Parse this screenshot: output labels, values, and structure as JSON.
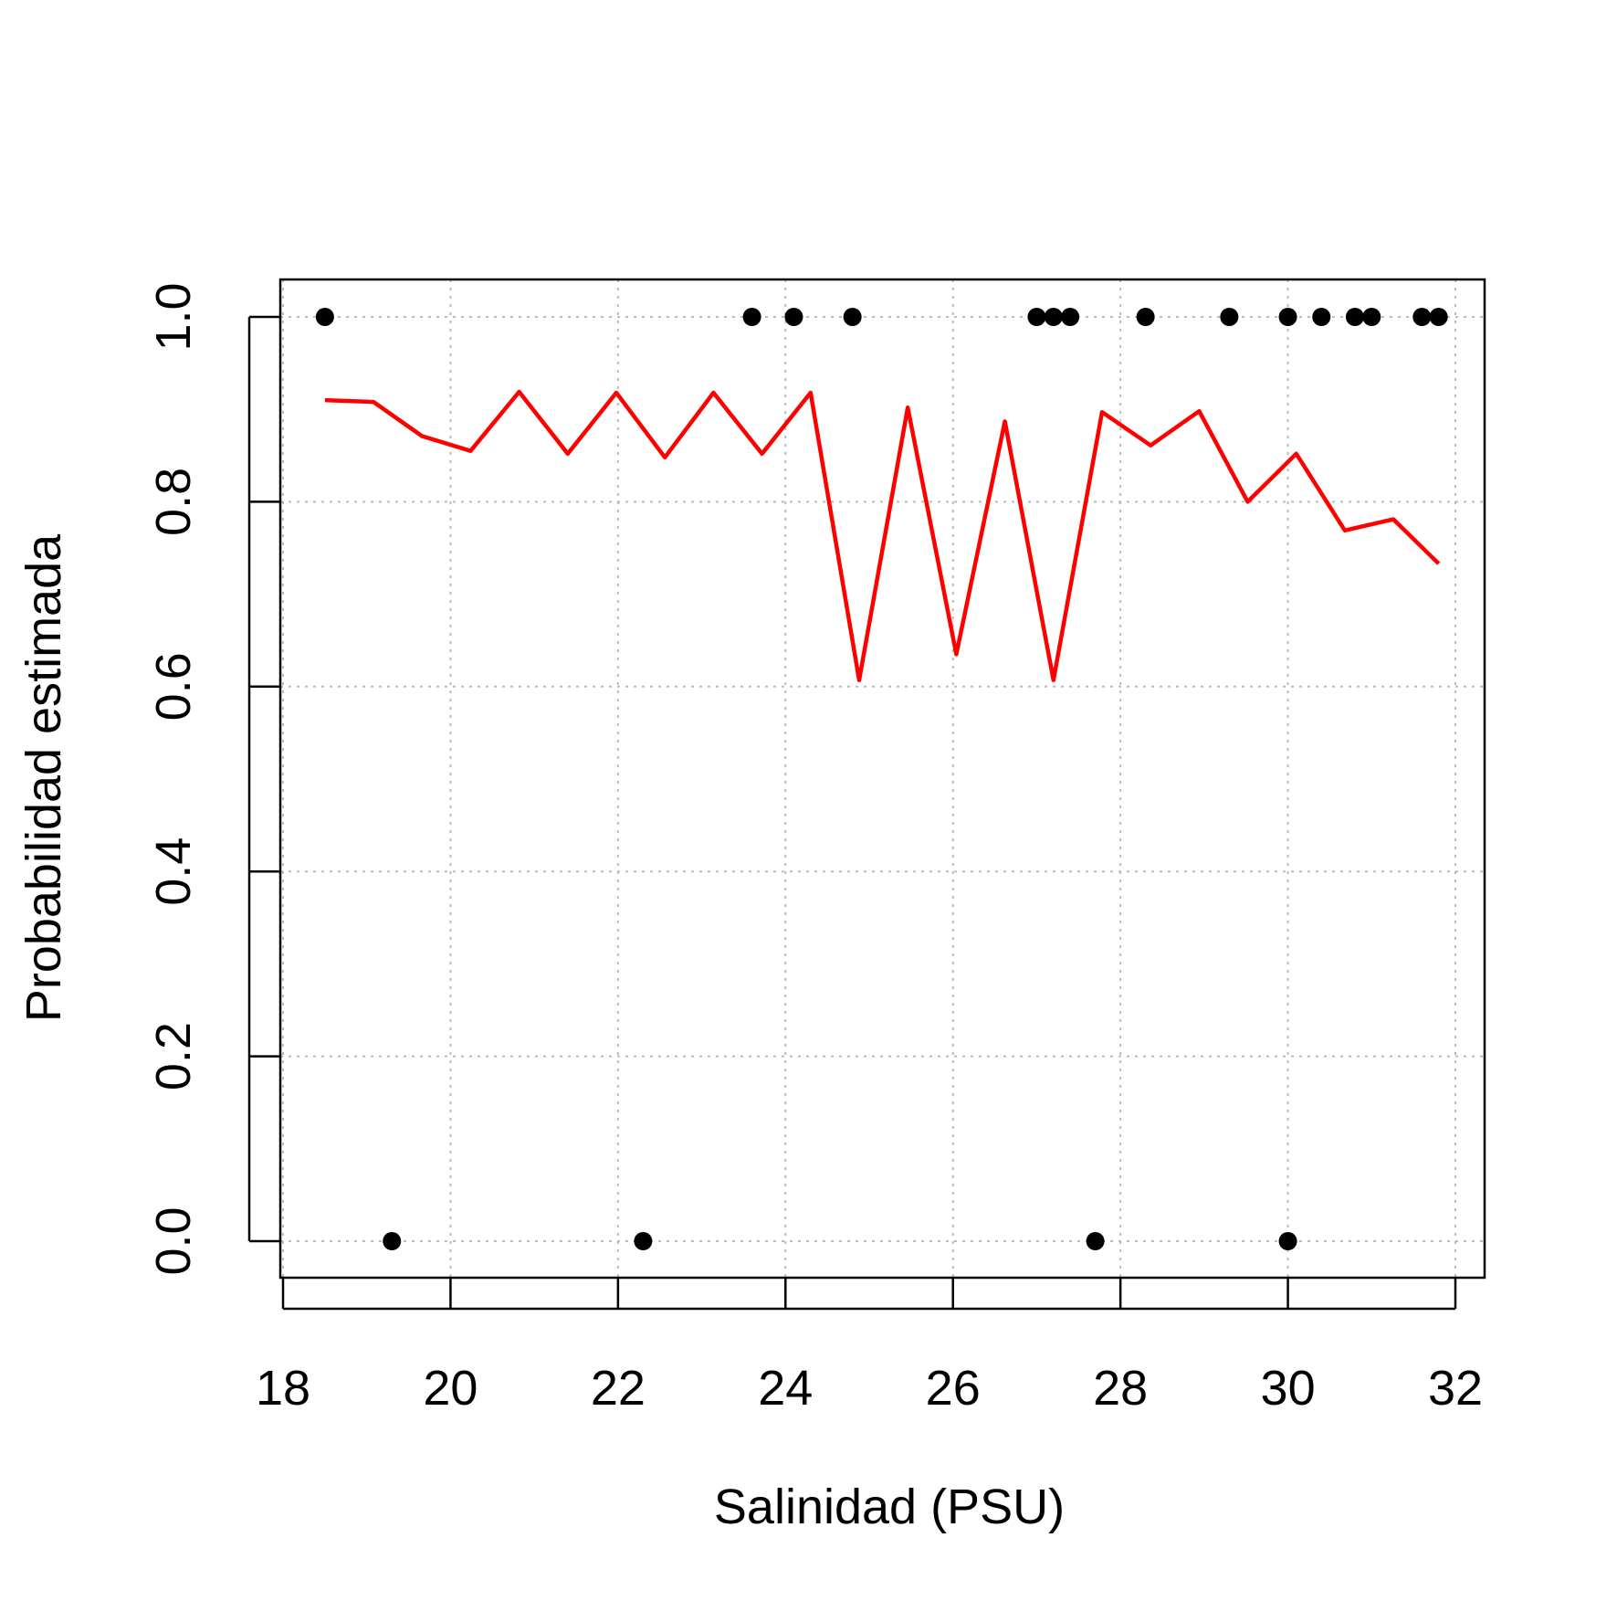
{
  "chart_data": {
    "type": "scatter",
    "title": "",
    "xlabel": "Salinidad (PSU)",
    "ylabel": "Probabilidad estimada",
    "xlim": [
      18,
      32
    ],
    "ylim": [
      0,
      1
    ],
    "xticks": [
      "18",
      "20",
      "22",
      "24",
      "26",
      "28",
      "30",
      "32"
    ],
    "yticks": [
      "0.0",
      "0.2",
      "0.4",
      "0.6",
      "0.8",
      "1.0"
    ],
    "xtick_values": [
      18,
      20,
      22,
      24,
      26,
      28,
      30,
      32
    ],
    "ytick_values": [
      0,
      0.2,
      0.4,
      0.6,
      0.8,
      1.0
    ],
    "grid": true,
    "series": [
      {
        "kind": "points",
        "color": "#000000",
        "x": [
          18.5,
          19.3,
          22.3,
          23.6,
          24.1,
          24.8,
          27.0,
          27.2,
          27.4,
          27.7,
          28.3,
          29.3,
          30.0,
          30.0,
          30.4,
          30.8,
          31.0,
          31.6,
          31.8
        ],
        "y": [
          1,
          0,
          0,
          1,
          1,
          1,
          1,
          1,
          1,
          0,
          1,
          1,
          1,
          0,
          1,
          1,
          1,
          1,
          1
        ]
      },
      {
        "kind": "line",
        "color": "#ff0000",
        "x": [
          18.5,
          19.08,
          19.66,
          20.24,
          20.82,
          21.4,
          21.98,
          22.56,
          23.14,
          23.72,
          24.3,
          24.88,
          25.46,
          26.04,
          26.62,
          27.2,
          27.78,
          28.36,
          28.94,
          29.52,
          30.1,
          30.68,
          31.26,
          31.8
        ],
        "y": [
          0.91,
          0.908,
          0.871,
          0.855,
          0.919,
          0.852,
          0.918,
          0.848,
          0.918,
          0.852,
          0.918,
          0.607,
          0.902,
          0.635,
          0.887,
          0.607,
          0.897,
          0.861,
          0.898,
          0.8,
          0.852,
          0.769,
          0.781,
          0.733
        ]
      }
    ]
  }
}
